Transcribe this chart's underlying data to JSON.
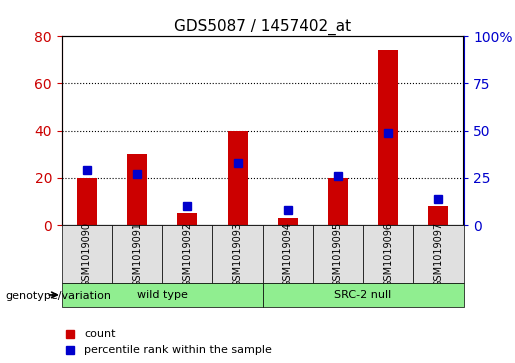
{
  "title": "GDS5087 / 1457402_at",
  "samples": [
    "GSM1019090",
    "GSM1019091",
    "GSM1019092",
    "GSM1019093",
    "GSM1019094",
    "GSM1019095",
    "GSM1019096",
    "GSM1019097"
  ],
  "counts": [
    20,
    30,
    5,
    40,
    3,
    20,
    74,
    8
  ],
  "percentiles": [
    29,
    27,
    10,
    33,
    8,
    26,
    49,
    14
  ],
  "groups": [
    {
      "label": "wild type",
      "start": 0,
      "end": 3
    },
    {
      "label": "SRC-2 null",
      "start": 4,
      "end": 7
    }
  ],
  "left_ylim": [
    0,
    80
  ],
  "right_ylim": [
    0,
    100
  ],
  "left_yticks": [
    0,
    20,
    40,
    60,
    80
  ],
  "right_yticks": [
    0,
    25,
    50,
    75,
    100
  ],
  "right_yticklabels": [
    "0",
    "25",
    "50",
    "75",
    "100%"
  ],
  "bar_color": "#cc0000",
  "marker_color": "#0000cc",
  "bar_width": 0.4,
  "marker_size": 6,
  "group_colors": [
    "#90ee90",
    "#90ee90"
  ],
  "genotype_label": "genotype/variation",
  "legend_count": "count",
  "legend_percentile": "percentile rank within the sample",
  "grid_color": "#000000",
  "title_color": "#000000",
  "left_axis_color": "#cc0000",
  "right_axis_color": "#0000cc",
  "bg_color": "#e0e0e0",
  "plot_bg": "#ffffff"
}
